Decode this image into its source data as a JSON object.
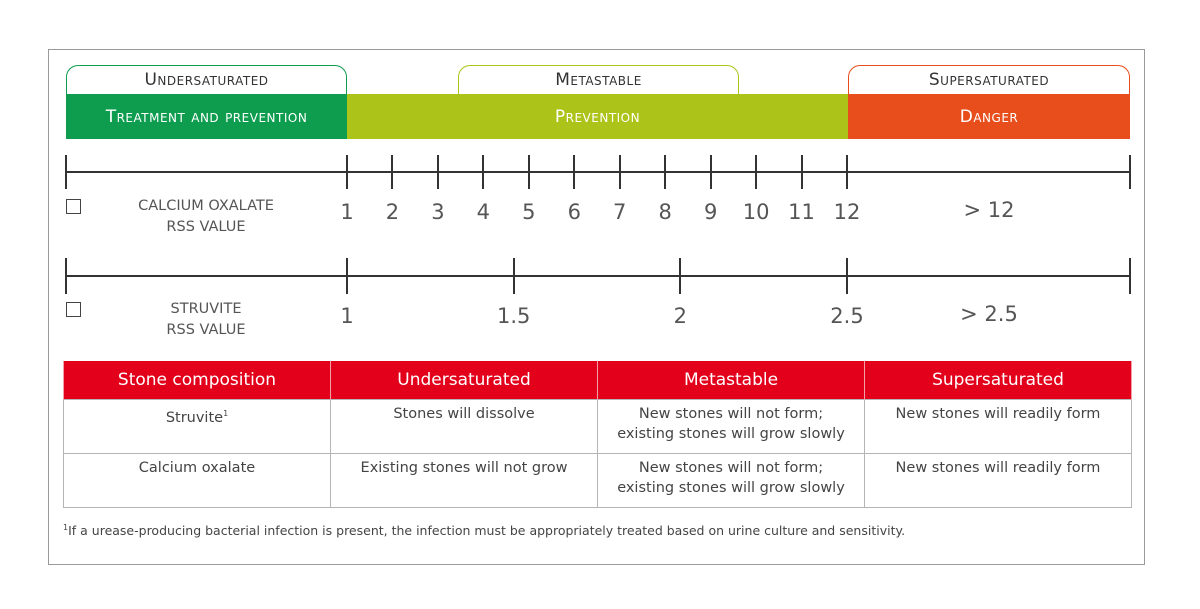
{
  "zones": {
    "undersaturated": {
      "label": "Undersaturated",
      "band": "Treatment and prevention",
      "color": "#0e9d4f"
    },
    "metastable": {
      "label": "Metastable",
      "band": "Prevention",
      "color": "#acc419"
    },
    "supersaturated": {
      "label": "Supersaturated",
      "band": "Danger",
      "color": "#e84e1b"
    }
  },
  "calcium_scale": {
    "label_line1": "CALCIUM OXALATE",
    "label_line2": "RSS VALUE",
    "ticks": [
      "1",
      "2",
      "3",
      "4",
      "5",
      "6",
      "7",
      "8",
      "9",
      "10",
      "11",
      "12"
    ],
    "beyond": "> 12"
  },
  "struvite_scale": {
    "label_line1": "STRUVITE",
    "label_line2": "RSS VALUE",
    "ticks": [
      "1",
      "1.5",
      "2",
      "2.5"
    ],
    "beyond": "> 2.5"
  },
  "table": {
    "headers": [
      "Stone composition",
      "Undersaturated",
      "Metastable",
      "Supersaturated"
    ],
    "rows": [
      {
        "composition": "Struvite",
        "sup": "1",
        "under": "Stones will dissolve",
        "meta_line1": "New stones will not form;",
        "meta_line2": "existing stones will grow slowly",
        "super": "New stones will readily form"
      },
      {
        "composition": "Calcium oxalate",
        "sup": "",
        "under": "Existing stones will not grow",
        "meta_line1": "New stones will not form;",
        "meta_line2": "existing stones will grow slowly",
        "super": "New stones will readily form"
      }
    ]
  },
  "footnote": {
    "sup": "1",
    "text": "If a urease-producing bacterial infection is present, the infection must be appropriately treated based on urine culture and sensitivity."
  }
}
